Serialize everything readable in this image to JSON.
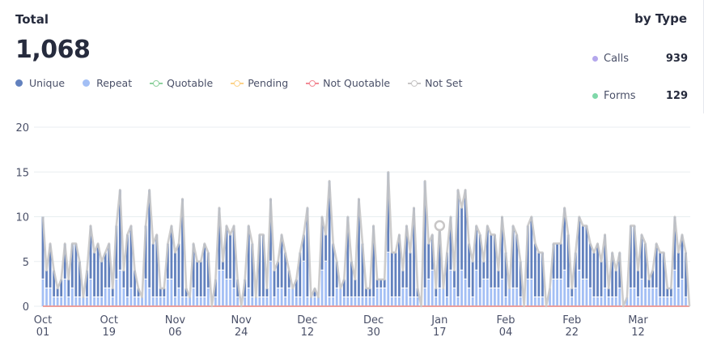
{
  "header": {
    "title": "Total",
    "total": "1,068",
    "by_type_title": "by Type"
  },
  "legend": [
    {
      "label": "Unique",
      "color": "#6281be",
      "marker": "dot"
    },
    {
      "label": "Repeat",
      "color": "#a3bff5",
      "marker": "dot"
    },
    {
      "label": "Quotable",
      "color": "#8fd19e",
      "marker": "line-ring"
    },
    {
      "label": "Pending",
      "color": "#fcd38a",
      "marker": "line-ring"
    },
    {
      "label": "Not Quotable",
      "color": "#f28b96",
      "marker": "line-ring"
    },
    {
      "label": "Not Set",
      "color": "#c8c6c6",
      "marker": "line-ring"
    }
  ],
  "by_type": [
    {
      "label": "Calls",
      "value": "939",
      "color": "#b4a7ec"
    },
    {
      "label": "Forms",
      "value": "129",
      "color": "#7fd8a9"
    }
  ],
  "chart_data": {
    "type": "bar",
    "stacked": true,
    "x_start": "Oct 01",
    "x_ticks": [
      [
        "Oct",
        "01"
      ],
      [
        "Oct",
        "19"
      ],
      [
        "Nov",
        "06"
      ],
      [
        "Nov",
        "24"
      ],
      [
        "Dec",
        "12"
      ],
      [
        "Dec",
        "30"
      ],
      [
        "Jan",
        "17"
      ],
      [
        "Feb",
        "04"
      ],
      [
        "Feb",
        "22"
      ],
      [
        "Mar",
        "12"
      ]
    ],
    "y_ticks": [
      0,
      5,
      10,
      15,
      20
    ],
    "ylim": [
      0,
      20
    ],
    "grid": true,
    "not_set_line": [
      10,
      4,
      7,
      4,
      2,
      3,
      7,
      3,
      7,
      7,
      5,
      1,
      4,
      9,
      6,
      7,
      5,
      6,
      7,
      2,
      9,
      13,
      4,
      8,
      9,
      4,
      2,
      1,
      9,
      13,
      7,
      8,
      2,
      2,
      7,
      9,
      6,
      7,
      12,
      2,
      1,
      7,
      5,
      5,
      7,
      6,
      0,
      3,
      11,
      5,
      9,
      8,
      9,
      3,
      0,
      3,
      9,
      7,
      1,
      8,
      8,
      2,
      12,
      4,
      5,
      8,
      6,
      4,
      2,
      3,
      6,
      8,
      11,
      1,
      2,
      1,
      10,
      8,
      14,
      7,
      5,
      2,
      3,
      10,
      5,
      3,
      12,
      7,
      2,
      2,
      9,
      3,
      3,
      3,
      15,
      6,
      6,
      8,
      4,
      9,
      6,
      11,
      2,
      0,
      14,
      7,
      8,
      2,
      9,
      2,
      6,
      10,
      4,
      13,
      11,
      13,
      7,
      5,
      9,
      8,
      5,
      9,
      8,
      8,
      4,
      10,
      6,
      2,
      9,
      8,
      5,
      0,
      9,
      10,
      7,
      6,
      6,
      0,
      2,
      7,
      7,
      7,
      11,
      8,
      2,
      6,
      10,
      9,
      9,
      7,
      6,
      7,
      5,
      8,
      2,
      6,
      4,
      6,
      0,
      1,
      9,
      9,
      4,
      8,
      7,
      3,
      4,
      7,
      6,
      6,
      2,
      2,
      10,
      6,
      8,
      6,
      0
    ],
    "repeat": [
      3,
      2,
      2,
      1,
      1,
      1,
      3,
      1,
      2,
      1,
      1,
      1,
      1,
      3,
      1,
      1,
      1,
      2,
      2,
      1,
      3,
      4,
      2,
      1,
      2,
      1,
      1,
      1,
      3,
      2,
      1,
      1,
      1,
      1,
      3,
      3,
      1,
      2,
      1,
      1,
      1,
      2,
      1,
      1,
      1,
      2,
      0,
      1,
      4,
      4,
      3,
      3,
      2,
      1,
      0,
      1,
      2,
      1,
      1,
      1,
      1,
      1,
      5,
      1,
      2,
      2,
      1,
      2,
      2,
      1,
      1,
      5,
      1,
      1,
      1,
      1,
      4,
      5,
      1,
      1,
      2,
      2,
      1,
      1,
      1,
      1,
      1,
      1,
      1,
      1,
      1,
      2,
      2,
      2,
      6,
      1,
      1,
      1,
      2,
      2,
      1,
      1,
      1,
      0,
      2,
      3,
      4,
      1,
      2,
      2,
      1,
      4,
      2,
      1,
      4,
      3,
      2,
      1,
      4,
      2,
      3,
      3,
      2,
      2,
      2,
      3,
      1,
      2,
      2,
      2,
      1,
      0,
      3,
      3,
      1,
      1,
      1,
      0,
      2,
      3,
      3,
      3,
      4,
      2,
      1,
      2,
      4,
      3,
      3,
      2,
      1,
      1,
      1,
      2,
      1,
      1,
      1,
      2,
      0,
      1,
      2,
      2,
      1,
      3,
      2,
      2,
      2,
      2,
      1,
      1,
      1,
      1,
      4,
      2,
      3,
      1,
      0
    ],
    "unique_note": "stacked on repeat",
    "quotable": 0,
    "pending": 0,
    "not_quotable": 0,
    "hover_day_index": 108
  }
}
